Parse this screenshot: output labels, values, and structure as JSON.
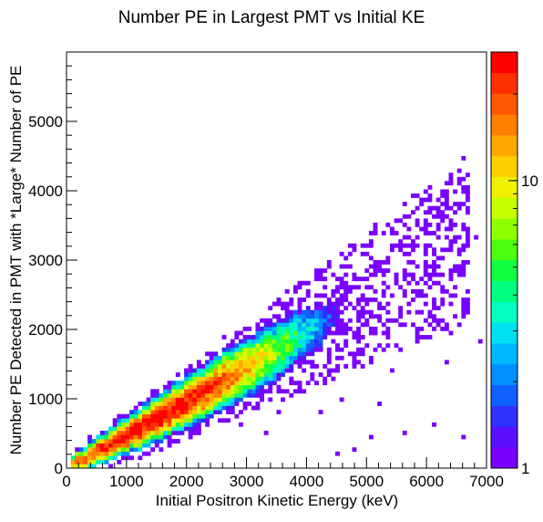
{
  "chart_data": {
    "type": "heatmap",
    "title": "Number PE in Largest PMT vs Initial KE",
    "xlabel": "Initial Positron Kinetic Energy (keV)",
    "ylabel": "Number PE Detected in PMT with *Large* Number of PE",
    "xlim": [
      0,
      7000
    ],
    "ylim": [
      0,
      6000
    ],
    "x_ticks": [
      "0",
      "1000",
      "2000",
      "3000",
      "4000",
      "5000",
      "6000",
      "7000"
    ],
    "y_ticks": [
      "0",
      "1000",
      "2000",
      "3000",
      "4000",
      "5000"
    ],
    "x_tick_values": [
      0,
      1000,
      2000,
      3000,
      4000,
      5000,
      6000,
      7000
    ],
    "y_tick_values": [
      0,
      1000,
      2000,
      3000,
      4000,
      5000
    ],
    "bin_width_x": 70,
    "bin_width_y": 60,
    "color_scale": "log",
    "z_range": [
      1,
      28
    ],
    "colorbar_ticks": [
      "1",
      "10"
    ],
    "colorbar_tick_values": [
      1,
      10
    ],
    "palette": [
      "#7a00ff",
      "#5a10ff",
      "#3030ff",
      "#1060ff",
      "#0090ff",
      "#00b8ff",
      "#00e0f0",
      "#00ffc0",
      "#00ff80",
      "#10ff40",
      "#50ff10",
      "#90ff00",
      "#c8ff00",
      "#f0f000",
      "#ffd000",
      "#ffa800",
      "#ff8000",
      "#ff5800",
      "#ff3000",
      "#ff0000"
    ],
    "band": {
      "x_range": [
        100,
        6700
      ],
      "pe_per_kev_start": 0.47,
      "pe_per_kev_end": 0.5,
      "peak_counts_at_x": 1500,
      "peak_counts": 28
    },
    "scatter": [
      [
        4500,
        200
      ],
      [
        4800,
        250
      ],
      [
        5100,
        420
      ],
      [
        4600,
        1000
      ],
      [
        5200,
        900
      ],
      [
        5600,
        520
      ],
      [
        6100,
        600
      ],
      [
        6600,
        420
      ],
      [
        6300,
        1500
      ],
      [
        6900,
        1850
      ],
      [
        5900,
        1880
      ],
      [
        6400,
        1930
      ],
      [
        3300,
        520
      ],
      [
        2900,
        600
      ],
      [
        2700,
        800
      ],
      [
        3500,
        800
      ],
      [
        3900,
        1100
      ],
      [
        4300,
        1300
      ],
      [
        5400,
        1400
      ],
      [
        6150,
        2400
      ],
      [
        6850,
        3300
      ],
      [
        6500,
        3250
      ],
      [
        4200,
        820
      ],
      [
        3600,
        1450
      ],
      [
        1500,
        400
      ],
      [
        1100,
        520
      ],
      [
        2200,
        900
      ],
      [
        2900,
        1100
      ],
      [
        3400,
        1300
      ],
      [
        3800,
        1600
      ]
    ]
  }
}
